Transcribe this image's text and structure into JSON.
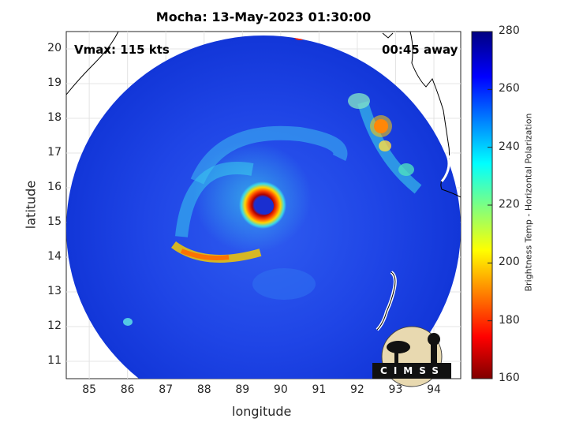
{
  "title": "Mocha: 13-May-2023 01:30:00",
  "annotations": {
    "vmax": "Vmax: 115 kts",
    "away": "00:45 away"
  },
  "axes": {
    "xlabel": "longitude",
    "ylabel": "latitude",
    "xticks": [
      "85",
      "86",
      "87",
      "88",
      "89",
      "90",
      "91",
      "92",
      "93",
      "94"
    ],
    "yticks": [
      "20",
      "19",
      "18",
      "17",
      "16",
      "15",
      "14",
      "13",
      "12",
      "11"
    ],
    "xlim": [
      84.4,
      94.7
    ],
    "ylim": [
      10.5,
      20.5
    ]
  },
  "colorbar": {
    "label": "Brightness Temp - Horizontal Polarization",
    "ticks": [
      "280",
      "260",
      "240",
      "220",
      "200",
      "180",
      "160"
    ],
    "range": [
      160,
      280
    ],
    "colormap": "jet"
  },
  "storm_center": {
    "lon": 89.5,
    "lat": 15.5
  },
  "logo": {
    "text": "CIMSS"
  },
  "colors": {
    "background": "#ffffff",
    "swath_base": "#1d3fe0",
    "eye_wall": "#e01414"
  }
}
